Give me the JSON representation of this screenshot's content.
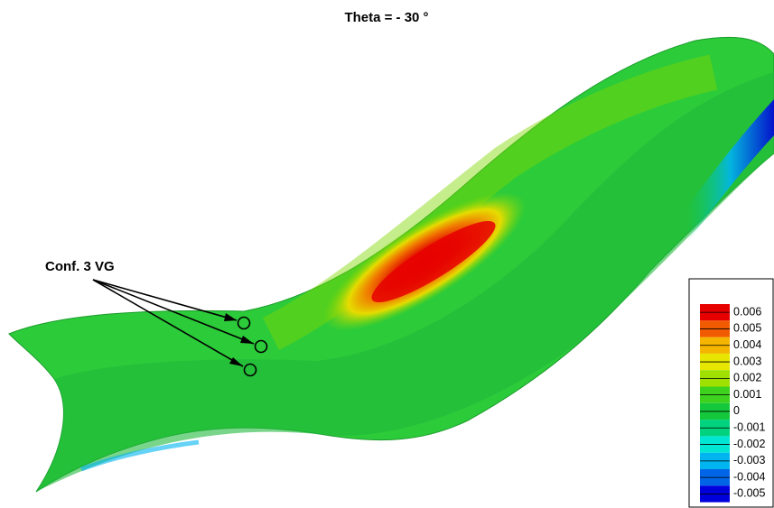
{
  "title": "Theta = - 30 °",
  "annotation": "Conf. 3 VG",
  "legend": {
    "levels": [
      {
        "value": 0.006,
        "color": "#e60000"
      },
      {
        "value": 0.005,
        "color": "#f05a00"
      },
      {
        "value": 0.004,
        "color": "#f5b400"
      },
      {
        "value": 0.003,
        "color": "#e6e600"
      },
      {
        "value": 0.002,
        "color": "#a0e000"
      },
      {
        "value": 0.001,
        "color": "#3cd21e"
      },
      {
        "value": 0,
        "color": "#14c83c"
      },
      {
        "value": -0.001,
        "color": "#00d27d"
      },
      {
        "value": -0.002,
        "color": "#00e6d2"
      },
      {
        "value": -0.003,
        "color": "#00b4f0"
      },
      {
        "value": -0.004,
        "color": "#0064e6"
      },
      {
        "value": -0.005,
        "color": "#0000dc"
      }
    ]
  }
}
